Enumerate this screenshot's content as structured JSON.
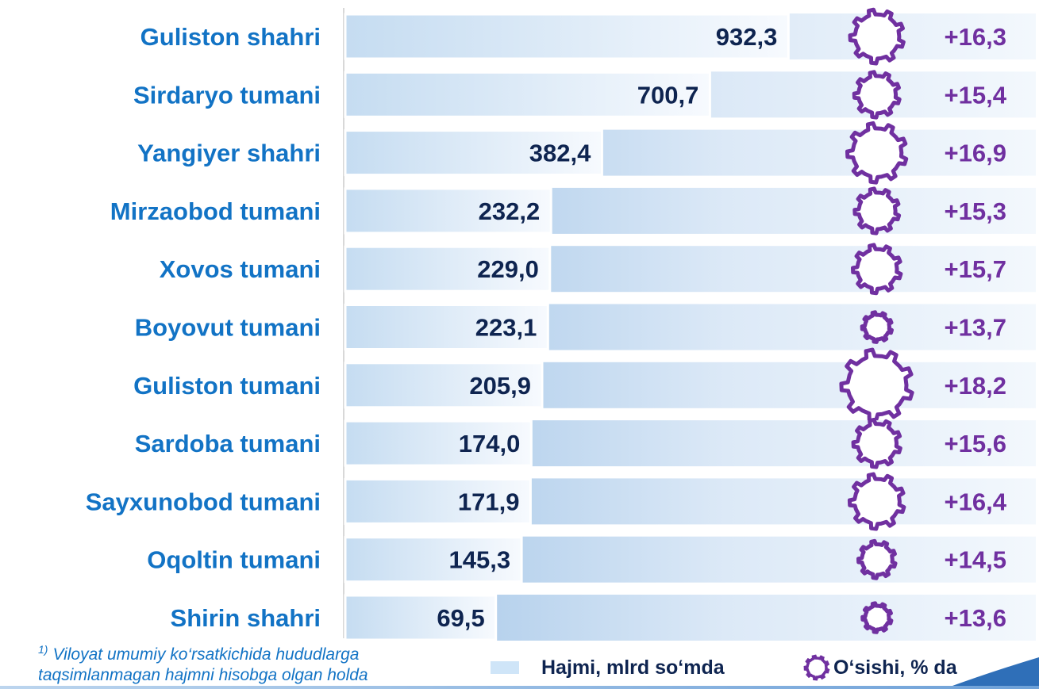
{
  "colors": {
    "category_text": "#1273c5",
    "value_text": "#0e2450",
    "growth": "#7030a0",
    "bar_strong": "#9fc3e6",
    "bar_light": "#f3f8fd",
    "legend_swatch": "#cfe5f8"
  },
  "chart_data": {
    "type": "bar",
    "orientation": "horizontal",
    "categories": [
      "Guliston shahri",
      "Sirdaryo tumani",
      "Yangiyer shahri",
      "Mirzaobod tumani",
      "Xovos tumani",
      "Boyovut tumani",
      "Guliston tumani",
      "Sardoba tumani",
      "Sayxunobod tumani",
      "Oqoltin tumani",
      "Shirin shahri"
    ],
    "series": [
      {
        "name": "Hajmi, mlrd so‘mda",
        "values": [
          932.3,
          700.7,
          382.4,
          232.2,
          229.0,
          223.1,
          205.9,
          174.0,
          171.9,
          145.3,
          69.5
        ],
        "labels": [
          "932,3",
          "700,7",
          "382,4",
          "232,2",
          "229,0",
          "223,1",
          "205,9",
          "174,0",
          "171,9",
          "145,3",
          "69,5"
        ]
      },
      {
        "name": "O‘sishi, % da",
        "values": [
          16.3,
          15.4,
          16.9,
          15.3,
          15.7,
          13.7,
          18.2,
          15.6,
          16.4,
          14.5,
          13.6
        ],
        "labels": [
          "+16,3",
          "+15,4",
          "+16,9",
          "+15,3",
          "+15,7",
          "+13,7",
          "+18,2",
          "+15,6",
          "+16,4",
          "+14,5",
          "+13,6"
        ],
        "marker": "gear-icon"
      }
    ],
    "legend": [
      "Hajmi, mlrd so‘mda",
      "O‘sishi, % da"
    ],
    "legend_position": "bottom"
  },
  "footnote": {
    "marker": "1)",
    "text": "Viloyat umumiy ko‘rsatkichida hududlarga taqsimlanmagan hajmni hisobga olgan holda"
  },
  "legend": {
    "volume_label": "Hajmi, mlrd so‘mda",
    "growth_label": "O‘sishi, % da",
    "growth_icon": "gear-icon"
  }
}
